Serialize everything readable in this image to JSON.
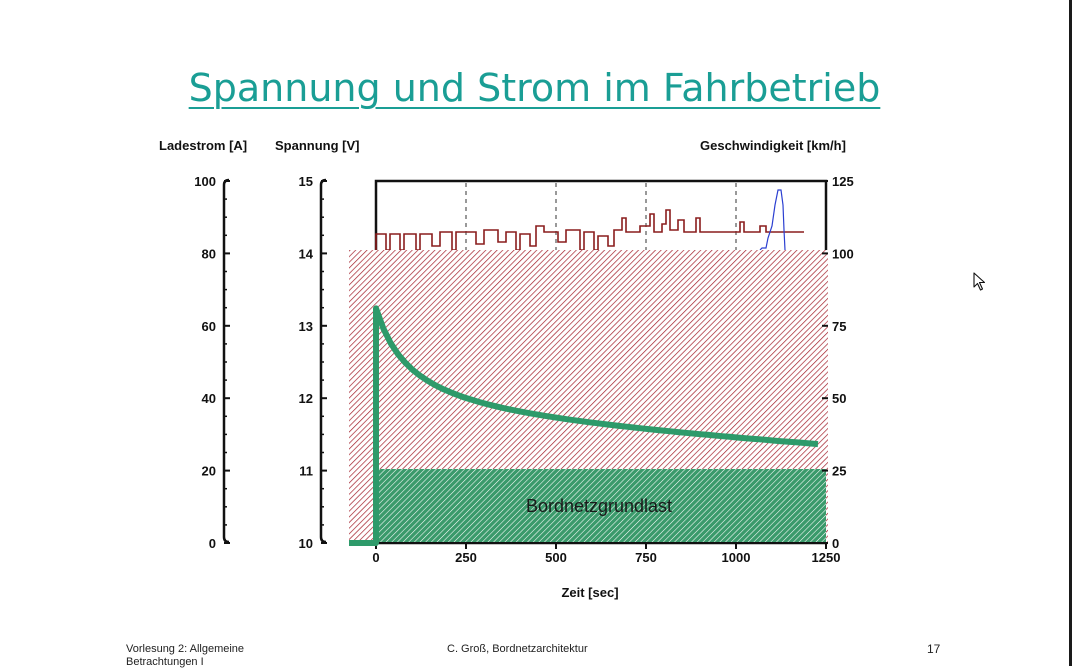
{
  "slide": {
    "title": "Spannung und Strom im Fahrbetrieb",
    "footer_left": "Vorlesung 2: Allgemeine Betrachtungen I",
    "footer_center": "C. Groß, Bordnetzarchitektur",
    "page_number": "17"
  },
  "chart_data": {
    "type": "line",
    "axis_titles": {
      "ladestrom": "Ladestrom [A]",
      "spannung": "Spannung [V]",
      "geschwindigkeit": "Geschwindigkeit [km/h]",
      "x": "Zeit [sec]"
    },
    "x_ticks": [
      "0",
      "250",
      "500",
      "750",
      "1000",
      "1250"
    ],
    "xlim": [
      0,
      1250
    ],
    "ladestrom_ticks": [
      "0",
      "20",
      "40",
      "60",
      "80",
      "100"
    ],
    "ladestrom_lim": [
      0,
      100
    ],
    "spannung_ticks": [
      "10",
      "11",
      "12",
      "13",
      "14",
      "15"
    ],
    "spannung_lim": [
      10,
      15
    ],
    "geschwindigkeit_ticks": [
      "0",
      "25",
      "50",
      "75",
      "100",
      "125"
    ],
    "geschwindigkeit_lim": [
      0,
      125
    ],
    "annotation": "Bordnetzgrundlast",
    "series": [
      {
        "axis": "geschwindigkeit",
        "x": [
          0,
          0,
          1250
        ],
        "y": [
          0,
          81,
          31
        ]
      },
      {
        "axis": "geschwindigkeit",
        "x": [
          0,
          1250
        ],
        "y": [
          25,
          25
        ]
      }
    ],
    "colors": {
      "hatch_red": "#a31f2a",
      "hatch_green": "#2b8a5c",
      "curve": "#2e9a6a",
      "voltage_trace": "#8a1d1d",
      "speed_trace": "#2b3fd1",
      "axis": "#111111"
    }
  }
}
